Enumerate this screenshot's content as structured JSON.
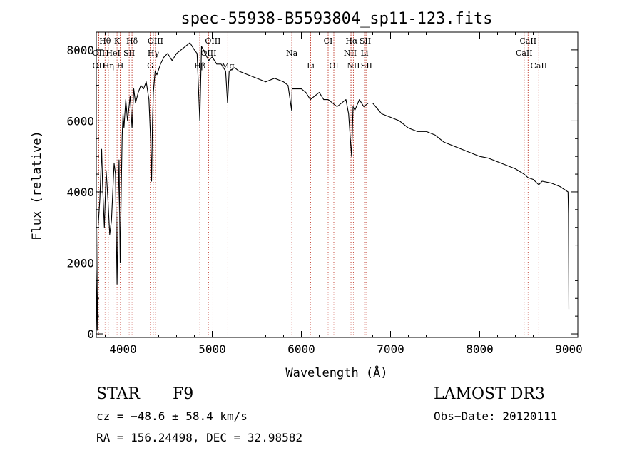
{
  "chart_data": {
    "type": "line",
    "title": "spec-55938-B5593804_sp11-123.fits",
    "xlabel": "Wavelength (Å)",
    "ylabel": "Flux (relative)",
    "xlim": [
      3700,
      9100
    ],
    "ylim": [
      -100,
      8500
    ],
    "xticks": [
      4000,
      5000,
      6000,
      7000,
      8000,
      9000
    ],
    "yticks": [
      0,
      2000,
      4000,
      6000,
      8000
    ],
    "series": [
      {
        "name": "flux",
        "x": [
          3700,
          3710,
          3720,
          3740,
          3760,
          3770,
          3790,
          3810,
          3830,
          3850,
          3870,
          3890,
          3900,
          3915,
          3933,
          3945,
          3955,
          3968,
          3980,
          3990,
          4000,
          4010,
          4030,
          4050,
          4080,
          4101,
          4120,
          4140,
          4170,
          4200,
          4230,
          4260,
          4290,
          4310,
          4320,
          4330,
          4340,
          4360,
          4380,
          4420,
          4460,
          4500,
          4550,
          4600,
          4650,
          4700,
          4750,
          4800,
          4830,
          4861,
          4880,
          4920,
          4960,
          5000,
          5050,
          5100,
          5150,
          5172,
          5190,
          5250,
          5300,
          5400,
          5500,
          5600,
          5700,
          5800,
          5850,
          5890,
          5896,
          5950,
          6000,
          6050,
          6100,
          6150,
          6200,
          6250,
          6300,
          6350,
          6400,
          6450,
          6500,
          6530,
          6563,
          6580,
          6600,
          6650,
          6700,
          6750,
          6800,
          6900,
          7000,
          7100,
          7200,
          7300,
          7400,
          7500,
          7600,
          7700,
          7800,
          7900,
          8000,
          8100,
          8200,
          8300,
          8400,
          8498,
          8542,
          8600,
          8662,
          8700,
          8800,
          8900,
          8990,
          8995,
          9000
        ],
        "values": [
          1800,
          100,
          3000,
          3800,
          5200,
          4200,
          3000,
          4600,
          3800,
          2800,
          3200,
          4300,
          4800,
          4500,
          1400,
          3600,
          4900,
          2000,
          4100,
          5600,
          6200,
          5800,
          6600,
          6000,
          6700,
          5800,
          6900,
          6500,
          6800,
          7000,
          6900,
          7100,
          6600,
          5400,
          4300,
          6000,
          6800,
          7400,
          7300,
          7600,
          7800,
          7900,
          7700,
          7900,
          8000,
          8100,
          8200,
          8000,
          7900,
          6000,
          8100,
          7900,
          7700,
          7800,
          7600,
          7600,
          7400,
          6500,
          7400,
          7500,
          7400,
          7300,
          7200,
          7100,
          7200,
          7100,
          7000,
          6300,
          6900,
          6900,
          6900,
          6800,
          6600,
          6700,
          6800,
          6600,
          6600,
          6500,
          6400,
          6500,
          6600,
          6200,
          5000,
          6400,
          6300,
          6600,
          6400,
          6500,
          6500,
          6200,
          6100,
          6000,
          5800,
          5700,
          5700,
          5600,
          5400,
          5300,
          5200,
          5100,
          5000,
          4950,
          4850,
          4750,
          4650,
          4500,
          4400,
          4350,
          4200,
          4300,
          4250,
          4150,
          4000,
          3400,
          700
        ]
      }
    ],
    "lines": [
      {
        "label": "Hθ",
        "x": 3798,
        "row": 0
      },
      {
        "label": "K",
        "x": 3933,
        "row": 0
      },
      {
        "label": "Hδ",
        "x": 4101,
        "row": 0
      },
      {
        "label": "OIII",
        "x": 4363,
        "row": 0
      },
      {
        "label": "OIII",
        "x": 5007,
        "row": 0
      },
      {
        "label": "CI",
        "x": 6300,
        "row": 0
      },
      {
        "label": "Hα",
        "x": 6563,
        "row": 0
      },
      {
        "label": "SII",
        "x": 6716,
        "row": 0
      },
      {
        "label": "CaII",
        "x": 8542,
        "row": 0
      },
      {
        "label": "OII",
        "x": 3727,
        "row": 1
      },
      {
        "label": "HeI",
        "x": 3889,
        "row": 1
      },
      {
        "label": "SII",
        "x": 4069,
        "row": 1
      },
      {
        "label": "Hγ",
        "x": 4340,
        "row": 1
      },
      {
        "label": "OIII",
        "x": 4959,
        "row": 1
      },
      {
        "label": "Na",
        "x": 5893,
        "row": 1
      },
      {
        "label": "NII",
        "x": 6548,
        "row": 1
      },
      {
        "label": "Li",
        "x": 6708,
        "row": 1
      },
      {
        "label": "CaII",
        "x": 8498,
        "row": 1
      },
      {
        "label": "OII",
        "x": 3727,
        "row": 2
      },
      {
        "label": "Hη",
        "x": 3835,
        "row": 2
      },
      {
        "label": "H",
        "x": 3968,
        "row": 2
      },
      {
        "label": "G",
        "x": 4304,
        "row": 2
      },
      {
        "label": "Hβ",
        "x": 4861,
        "row": 2
      },
      {
        "label": "Mg",
        "x": 5175,
        "row": 2
      },
      {
        "label": "Li",
        "x": 6104,
        "row": 2
      },
      {
        "label": "OI",
        "x": 6364,
        "row": 2
      },
      {
        "label": "NII",
        "x": 6583,
        "row": 2
      },
      {
        "label": "SII",
        "x": 6731,
        "row": 2
      },
      {
        "label": "CaII",
        "x": 8662,
        "row": 2
      }
    ]
  },
  "info": {
    "class": "STAR",
    "subclass": "F9",
    "survey": "LAMOST DR3",
    "cz": "cz = −48.6 ± 58.4 km/s",
    "obs_date": "Obs−Date: 20120111",
    "coords": "RA = 156.24498, DEC =  32.98582"
  }
}
